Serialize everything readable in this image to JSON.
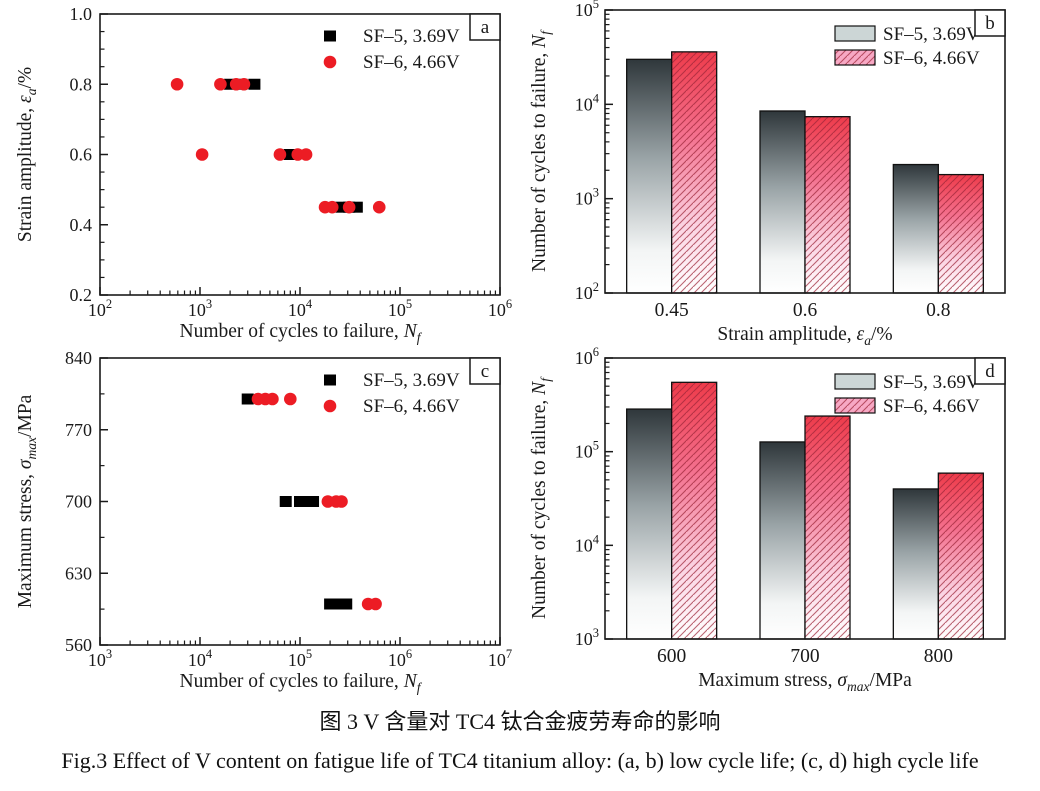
{
  "figure": {
    "captions": {
      "zh": "图 3  V 含量对 TC4 钛合金疲劳寿命的影响",
      "en": "Fig.3  Effect of V content on fatigue life of TC4 titanium alloy: (a, b) low cycle life; (c, d) high cycle life"
    },
    "colors": {
      "axis": "#1a1a1a",
      "sf5_marker": "#000000",
      "sf6_marker": "#ec1c24",
      "bar_gray_top": "#2f373b",
      "bar_red_top": "#ee3b4a",
      "hatch_line": "#9c2438",
      "legend_gray_swatch": "#ccd6d6",
      "legend_pink_swatch": "#f7a8c4"
    }
  },
  "chart_data": [
    {
      "panel": "a",
      "type": "scatter",
      "xlabel": {
        "prefix": "Number of cycles to failure, ",
        "symbol": "N",
        "sub": "f",
        "suffix": ""
      },
      "ylabel": {
        "prefix": "Strain amplitude, ",
        "symbol": "ε",
        "sub": "a",
        "suffix": "/%"
      },
      "x_log_range": [
        2,
        6
      ],
      "y_range": [
        0.2,
        1.0
      ],
      "y_ticks": [
        "0.2",
        "0.4",
        "0.6",
        "0.8",
        "1.0"
      ],
      "y_minor_step": 0.05,
      "legend_position": "top-right-inside",
      "series": [
        {
          "name": "SF–5, 3.69V",
          "marker": "square",
          "color": "#000000",
          "points": [
            [
              2000,
              0.8
            ],
            [
              2600,
              0.8
            ],
            [
              3500,
              0.8
            ],
            [
              7900,
              0.6
            ],
            [
              26000,
              0.45
            ],
            [
              31000,
              0.45
            ],
            [
              37000,
              0.45
            ]
          ]
        },
        {
          "name": "SF–6, 4.66V",
          "marker": "circle",
          "color": "#ec1c24",
          "points": [
            [
              590,
              0.8
            ],
            [
              1600,
              0.8
            ],
            [
              2300,
              0.8
            ],
            [
              2750,
              0.8
            ],
            [
              1050,
              0.6
            ],
            [
              6300,
              0.6
            ],
            [
              9500,
              0.6
            ],
            [
              11500,
              0.6
            ],
            [
              17800,
              0.45
            ],
            [
              21000,
              0.45
            ],
            [
              31000,
              0.45
            ],
            [
              62000,
              0.45
            ]
          ]
        }
      ]
    },
    {
      "panel": "b",
      "type": "bar",
      "xlabel": {
        "prefix": "Strain amplitude, ",
        "symbol": "ε",
        "sub": "a",
        "suffix": "/%"
      },
      "ylabel": {
        "prefix": "Number of cycles to failure, ",
        "symbol": "N",
        "sub": "f",
        "suffix": ""
      },
      "y_log_range": [
        2,
        5
      ],
      "categories": [
        "0.45",
        "0.6",
        "0.8"
      ],
      "series": [
        {
          "name": "SF–5, 3.69V",
          "style": "gray-gradient",
          "values": [
            30000,
            8500,
            2300
          ]
        },
        {
          "name": "SF–6, 4.66V",
          "style": "red-gradient-hatched",
          "values": [
            36000,
            7400,
            1800
          ]
        }
      ]
    },
    {
      "panel": "c",
      "type": "scatter",
      "xlabel": {
        "prefix": "Number of cycles to failure, ",
        "symbol": "N",
        "sub": "f",
        "suffix": ""
      },
      "ylabel": {
        "prefix": "Maximum stress, ",
        "symbol": "σ",
        "sub": "max",
        "suffix": "/MPa"
      },
      "x_log_range": [
        3,
        7
      ],
      "y_range": [
        560,
        840
      ],
      "y_ticks": [
        "560",
        "630",
        "700",
        "770",
        "840"
      ],
      "y_minor_step": 35,
      "legend_position": "top-right-inside",
      "series": [
        {
          "name": "SF–5, 3.69V",
          "marker": "square",
          "color": "#000000",
          "points": [
            [
              30000,
              800
            ],
            [
              72000,
              700
            ],
            [
              100000,
              700
            ],
            [
              118000,
              700
            ],
            [
              135000,
              700
            ],
            [
              200000,
              600
            ],
            [
              240000,
              600
            ],
            [
              290000,
              600
            ]
          ]
        },
        {
          "name": "SF–6, 4.66V",
          "marker": "circle",
          "color": "#ec1c24",
          "points": [
            [
              38000,
              800
            ],
            [
              45000,
              800
            ],
            [
              53000,
              800
            ],
            [
              80000,
              800
            ],
            [
              190000,
              700
            ],
            [
              230000,
              700
            ],
            [
              260000,
              700
            ],
            [
              480000,
              600
            ],
            [
              570000,
              600
            ]
          ]
        }
      ]
    },
    {
      "panel": "d",
      "type": "bar",
      "xlabel": {
        "prefix": "Maximum stress, ",
        "symbol": "σ",
        "sub": "max",
        "suffix": "/MPa"
      },
      "ylabel": {
        "prefix": "Number of cycles to failure, ",
        "symbol": "N",
        "sub": "f",
        "suffix": ""
      },
      "y_log_range": [
        3,
        6
      ],
      "categories": [
        "600",
        "700",
        "800"
      ],
      "series": [
        {
          "name": "SF–5, 3.69V",
          "style": "gray-gradient",
          "values": [
            285000,
            127000,
            40000
          ]
        },
        {
          "name": "SF–6, 4.66V",
          "style": "red-gradient-hatched",
          "values": [
            550000,
            240000,
            59000
          ]
        }
      ]
    }
  ]
}
